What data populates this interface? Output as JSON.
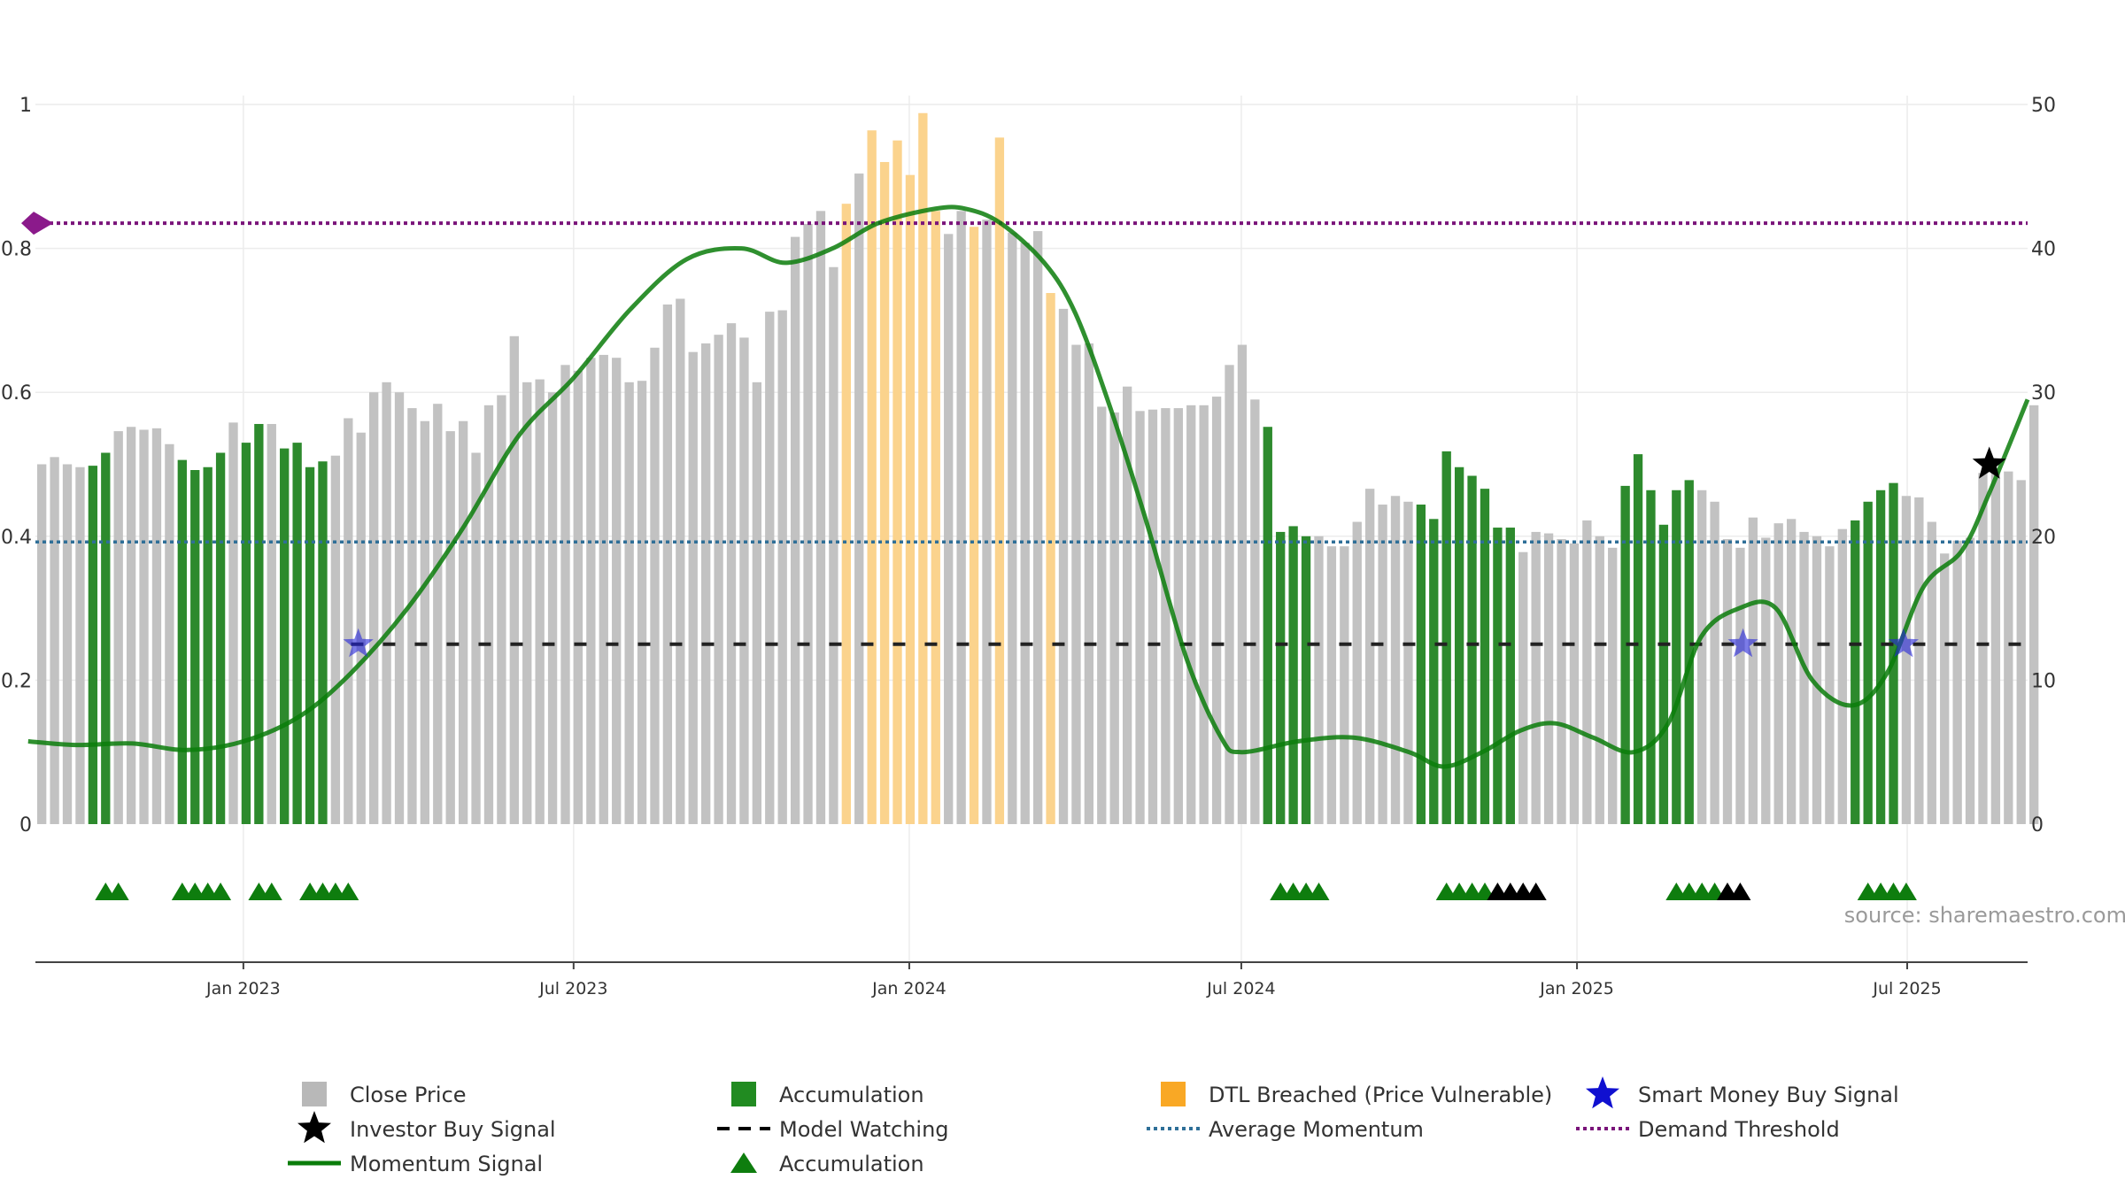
{
  "chart_data": {
    "type": "bar",
    "source_text": "source: sharemaestro.com",
    "x_range": [
      "2022-09-09",
      "2025-09-05"
    ],
    "left_axis": {
      "ylim": [
        0,
        1
      ],
      "ticks": [
        "0",
        "0.2",
        "0.4",
        "0.6",
        "0.8",
        "1"
      ],
      "tick_values": [
        0,
        0.2,
        0.4,
        0.6,
        0.8,
        1
      ]
    },
    "right_axis": {
      "ylim": [
        0,
        50
      ],
      "ticks": [
        "0",
        "10",
        "20",
        "30",
        "40",
        "50"
      ],
      "tick_values": [
        0,
        10,
        20,
        30,
        40,
        50
      ]
    },
    "x_ticks": [
      {
        "label": "Jan 2023",
        "date": "2023-01-01"
      },
      {
        "label": "Jul 2023",
        "date": "2023-07-01"
      },
      {
        "label": "Jan 2024",
        "date": "2024-01-01"
      },
      {
        "label": "Jul 2024",
        "date": "2024-07-01"
      },
      {
        "label": "Jan 2025",
        "date": "2025-01-01"
      },
      {
        "label": "Jul 2025",
        "date": "2025-07-01"
      }
    ],
    "bar_start_date": "2022-09-09",
    "bar_interval_days": 7,
    "close_price": [
      25.0,
      25.5,
      25.0,
      24.8,
      24.9,
      25.8,
      27.3,
      27.6,
      27.4,
      27.5,
      26.4,
      25.3,
      24.6,
      24.8,
      25.8,
      27.9,
      26.5,
      27.8,
      27.8,
      26.1,
      26.5,
      24.8,
      25.2,
      25.6,
      28.2,
      27.2,
      30.0,
      30.7,
      30.0,
      28.9,
      28.0,
      29.2,
      27.3,
      28.0,
      25.8,
      29.1,
      29.8,
      33.9,
      30.7,
      30.9,
      30.0,
      31.9,
      31.5,
      32.4,
      32.6,
      32.4,
      30.7,
      30.8,
      33.1,
      36.1,
      36.5,
      32.8,
      33.4,
      34.0,
      34.8,
      33.8,
      30.7,
      35.6,
      35.7,
      40.8,
      41.7,
      42.6,
      38.7,
      43.1,
      45.2,
      48.2,
      46.0,
      47.5,
      45.1,
      49.4,
      42.6,
      41.0,
      42.6,
      41.5,
      42.0,
      47.7,
      41.1,
      40.4,
      41.2,
      36.9,
      35.8,
      33.3,
      33.4,
      29.0,
      28.6,
      30.4,
      28.7,
      28.8,
      28.9,
      28.9,
      29.1,
      29.1,
      29.7,
      31.9,
      33.3,
      29.5,
      27.6,
      20.3,
      20.7,
      20.0,
      20.0,
      19.3,
      19.3,
      21.0,
      23.3,
      22.2,
      22.8,
      22.4,
      22.2,
      21.2,
      25.9,
      24.8,
      24.2,
      23.3,
      20.6,
      20.6,
      18.9,
      20.3,
      20.2,
      19.8,
      19.5,
      21.1,
      20.0,
      19.2,
      23.5,
      25.7,
      23.2,
      20.8,
      23.2,
      23.9,
      23.2,
      22.4,
      19.8,
      19.2,
      21.3,
      19.9,
      20.9,
      21.2,
      20.3,
      20.0,
      19.3,
      20.5,
      21.1,
      22.4,
      23.2,
      23.7,
      22.8,
      22.7,
      21.0,
      18.8,
      19.7,
      19.9,
      24.4,
      24.5,
      24.5,
      23.9,
      29.1
    ],
    "bar_types": [
      "close",
      "close",
      "close",
      "close",
      "accumulation",
      "accumulation",
      "close",
      "close",
      "close",
      "close",
      "close",
      "accumulation",
      "accumulation",
      "accumulation",
      "accumulation",
      "close",
      "accumulation",
      "accumulation",
      "close",
      "accumulation",
      "accumulation",
      "accumulation",
      "accumulation",
      "close",
      "close",
      "close",
      "close",
      "close",
      "close",
      "close",
      "close",
      "close",
      "close",
      "close",
      "close",
      "close",
      "close",
      "close",
      "close",
      "close",
      "close",
      "close",
      "close",
      "close",
      "close",
      "close",
      "close",
      "close",
      "close",
      "close",
      "close",
      "close",
      "close",
      "close",
      "close",
      "close",
      "close",
      "close",
      "close",
      "close",
      "close",
      "close",
      "close",
      "dtl",
      "close",
      "dtl",
      "dtl",
      "dtl",
      "dtl",
      "dtl",
      "dtl",
      "close",
      "close",
      "dtl",
      "close",
      "dtl",
      "close",
      "close",
      "close",
      "dtl",
      "close",
      "close",
      "close",
      "close",
      "close",
      "close",
      "close",
      "close",
      "close",
      "close",
      "close",
      "close",
      "close",
      "close",
      "close",
      "close",
      "accumulation",
      "accumulation",
      "accumulation",
      "accumulation",
      "close",
      "close",
      "close",
      "close",
      "close",
      "close",
      "close",
      "close",
      "accumulation",
      "accumulation",
      "accumulation",
      "accumulation",
      "accumulation",
      "accumulation",
      "accumulation",
      "accumulation",
      "close",
      "close",
      "close",
      "close",
      "close",
      "close",
      "close",
      "close",
      "accumulation",
      "accumulation",
      "accumulation",
      "accumulation",
      "accumulation",
      "accumulation",
      "close",
      "close",
      "close",
      "close",
      "close",
      "close",
      "close",
      "close",
      "close",
      "close",
      "close",
      "close",
      "accumulation",
      "accumulation",
      "accumulation",
      "accumulation",
      "close",
      "close",
      "close",
      "close",
      "close",
      "close",
      "close",
      "close",
      "close",
      "close",
      "close",
      "close",
      "close"
    ],
    "momentum_signal": {
      "x": [
        "2022-09-05",
        "2022-10-01",
        "2022-11-01",
        "2022-12-01",
        "2023-01-01",
        "2023-02-01",
        "2023-03-01",
        "2023-04-01",
        "2023-05-01",
        "2023-06-01",
        "2023-07-01",
        "2023-08-01",
        "2023-09-01",
        "2023-10-01",
        "2023-10-25",
        "2023-11-20",
        "2023-12-15",
        "2024-01-15",
        "2024-02-01",
        "2024-02-20",
        "2024-03-15",
        "2024-04-01",
        "2024-04-20",
        "2024-05-10",
        "2024-06-01",
        "2024-06-20",
        "2024-07-01",
        "2024-08-01",
        "2024-09-01",
        "2024-10-01",
        "2024-10-20",
        "2024-11-10",
        "2024-12-01",
        "2024-12-20",
        "2025-01-10",
        "2025-02-01",
        "2025-02-20",
        "2025-03-10",
        "2025-03-31",
        "2025-04-20",
        "2025-05-10",
        "2025-06-01",
        "2025-06-20",
        "2025-07-10",
        "2025-07-31",
        "2025-08-15",
        "2025-09-05"
      ],
      "y": [
        0.115,
        0.11,
        0.112,
        0.103,
        0.115,
        0.15,
        0.21,
        0.3,
        0.41,
        0.54,
        0.62,
        0.715,
        0.785,
        0.8,
        0.78,
        0.8,
        0.835,
        0.855,
        0.855,
        0.835,
        0.78,
        0.71,
        0.58,
        0.42,
        0.23,
        0.12,
        0.1,
        0.115,
        0.12,
        0.1,
        0.08,
        0.1,
        0.13,
        0.14,
        0.12,
        0.1,
        0.14,
        0.26,
        0.3,
        0.3,
        0.2,
        0.165,
        0.21,
        0.33,
        0.38,
        0.46,
        0.59
      ]
    },
    "average_momentum": 0.392,
    "demand_threshold": 0.835,
    "model_watching": {
      "y": 0.25,
      "from": "2023-03-01",
      "to": "2025-09-05"
    },
    "smart_money_buy_signals": [
      {
        "date": "2023-03-05",
        "y": 0.25
      },
      {
        "date": "2025-04-02",
        "y": 0.25
      },
      {
        "date": "2025-06-29",
        "y": 0.25
      }
    ],
    "investor_buy_signals": [
      {
        "date": "2025-08-15",
        "y": 0.5
      }
    ],
    "accumulation_markers": [
      {
        "date": "2022-10-14",
        "color": "green"
      },
      {
        "date": "2022-10-21",
        "color": "green"
      },
      {
        "date": "2022-11-25",
        "color": "green"
      },
      {
        "date": "2022-12-02",
        "color": "green"
      },
      {
        "date": "2022-12-09",
        "color": "green"
      },
      {
        "date": "2022-12-16",
        "color": "green"
      },
      {
        "date": "2023-01-06",
        "color": "green"
      },
      {
        "date": "2023-01-13",
        "color": "green"
      },
      {
        "date": "2023-02-03",
        "color": "green"
      },
      {
        "date": "2023-02-10",
        "color": "green"
      },
      {
        "date": "2023-02-17",
        "color": "green"
      },
      {
        "date": "2023-02-24",
        "color": "green"
      },
      {
        "date": "2024-07-19",
        "color": "green"
      },
      {
        "date": "2024-07-26",
        "color": "green"
      },
      {
        "date": "2024-08-02",
        "color": "green"
      },
      {
        "date": "2024-08-09",
        "color": "green"
      },
      {
        "date": "2024-10-18",
        "color": "green"
      },
      {
        "date": "2024-10-25",
        "color": "green"
      },
      {
        "date": "2024-11-01",
        "color": "green"
      },
      {
        "date": "2024-11-08",
        "color": "green"
      },
      {
        "date": "2024-11-15",
        "color": "black"
      },
      {
        "date": "2024-11-22",
        "color": "black"
      },
      {
        "date": "2024-11-29",
        "color": "black"
      },
      {
        "date": "2024-12-06",
        "color": "black"
      },
      {
        "date": "2025-02-21",
        "color": "green"
      },
      {
        "date": "2025-02-28",
        "color": "green"
      },
      {
        "date": "2025-03-07",
        "color": "green"
      },
      {
        "date": "2025-03-14",
        "color": "green"
      },
      {
        "date": "2025-03-21",
        "color": "black"
      },
      {
        "date": "2025-03-28",
        "color": "black"
      },
      {
        "date": "2025-06-06",
        "color": "green"
      },
      {
        "date": "2025-06-13",
        "color": "green"
      },
      {
        "date": "2025-06-20",
        "color": "green"
      },
      {
        "date": "2025-06-27",
        "color": "green"
      }
    ],
    "colors": {
      "close": "#c2c2c2",
      "accumulation": "#2d8a2d",
      "dtl": "#fbd38d",
      "momentum": "#0b7d0b",
      "average": "#2f6f98",
      "threshold": "#7a147a",
      "watching": "#222222",
      "smart_money": "#2525d9",
      "investor": "#000000",
      "marker_green": "#0e7d0e",
      "marker_black": "#000000"
    },
    "legend": [
      {
        "label": "Close Price",
        "symbol": "square",
        "color": "#b8b8b8"
      },
      {
        "label": "Accumulation",
        "symbol": "square",
        "color": "#218b21"
      },
      {
        "label": "DTL Breached (Price Vulnerable)",
        "symbol": "square",
        "color": "#f9a825"
      },
      {
        "label": "Smart Money Buy Signal",
        "symbol": "star",
        "color": "#1010d0"
      },
      {
        "label": "Investor Buy Signal",
        "symbol": "star",
        "color": "#000000"
      },
      {
        "label": "Model Watching",
        "symbol": "dash",
        "color": "#000000"
      },
      {
        "label": "Average Momentum",
        "symbol": "dot",
        "color": "#2f6f98"
      },
      {
        "label": "Demand Threshold",
        "symbol": "dot",
        "color": "#7a147a"
      },
      {
        "label": "Momentum Signal",
        "symbol": "line",
        "color": "#0b7d0b"
      },
      {
        "label": "Accumulation",
        "symbol": "triangle",
        "color": "#0e7d0e"
      }
    ]
  }
}
